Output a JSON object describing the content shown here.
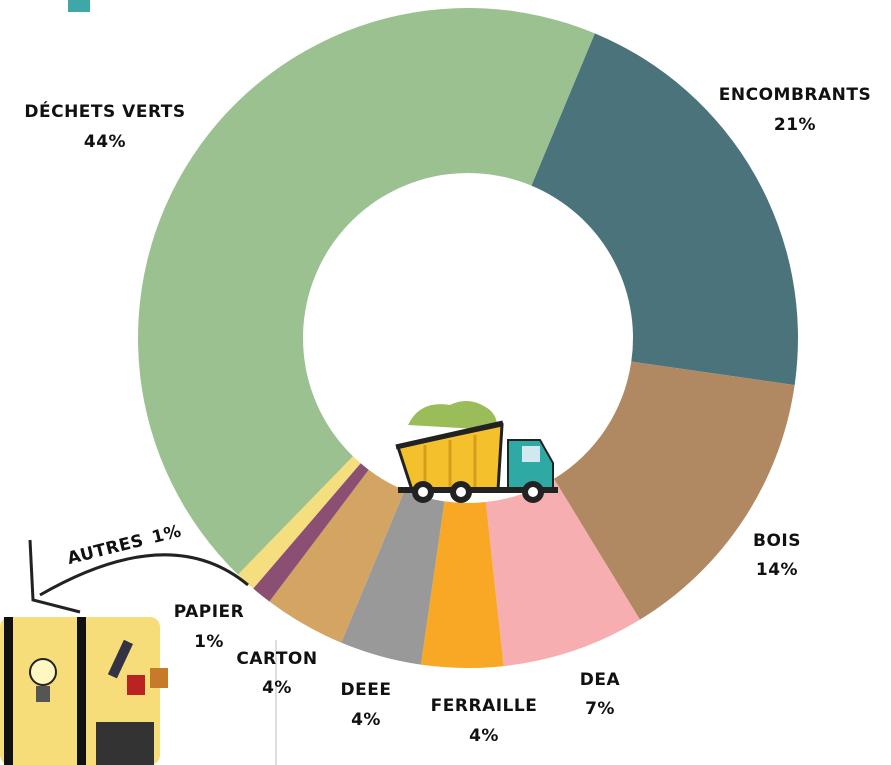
{
  "chart_data": {
    "type": "donut",
    "categories": [
      "ENCOMBRANTS",
      "BOIS",
      "DEA",
      "FERRAILLE",
      "DEEE",
      "CARTON",
      "PAPIER",
      "AUTRES",
      "DÉCHETS VERTS"
    ],
    "values": [
      21,
      14,
      7,
      4,
      4,
      4,
      1,
      1,
      44
    ],
    "value_labels": [
      "21%",
      "14%",
      "7%",
      "4%",
      "4%",
      "4%",
      "1%",
      "1%",
      "44%"
    ],
    "colors": [
      "#4a737b",
      "#b08963",
      "#f7aeb0",
      "#f9a825",
      "#999999",
      "#d4a462",
      "#8b4f73",
      "#f5de7d",
      "#9bc191"
    ]
  }
}
